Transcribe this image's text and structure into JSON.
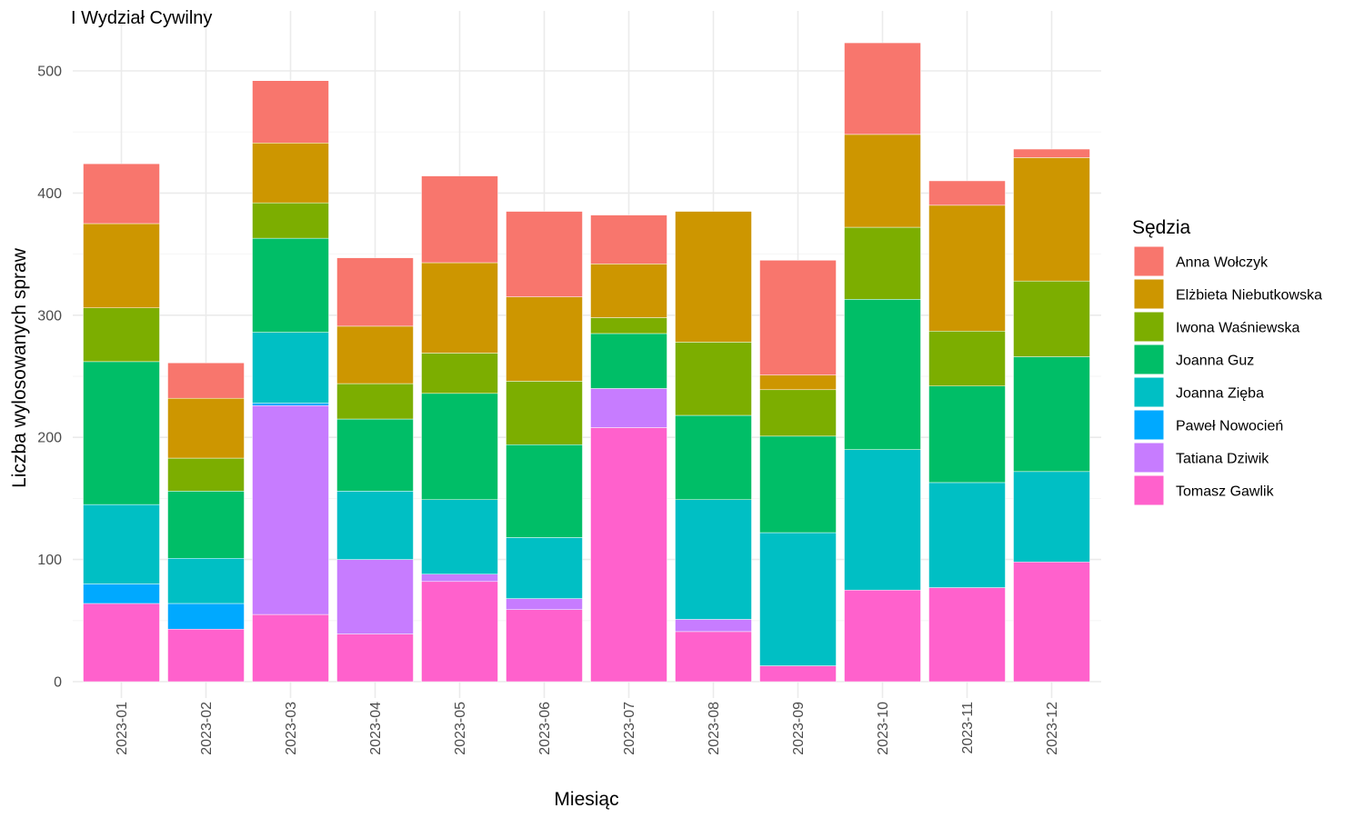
{
  "chart_data": {
    "type": "bar",
    "stacked": true,
    "title": "I Wydział Cywilny",
    "xlabel": "Miesiąc",
    "ylabel": "Liczba wylosowanych spraw",
    "ylim": [
      0,
      530
    ],
    "yticks": [
      0,
      100,
      200,
      300,
      400,
      500
    ],
    "grid": true,
    "legend": {
      "title": "Sędzia",
      "position": "right"
    },
    "categories": [
      "2023-01",
      "2023-02",
      "2023-03",
      "2023-04",
      "2023-05",
      "2023-06",
      "2023-07",
      "2023-08",
      "2023-09",
      "2023-10",
      "2023-11",
      "2023-12"
    ],
    "series": [
      {
        "name": "Anna Wołczyk",
        "color": "#F8766D",
        "values": [
          49,
          29,
          51,
          56,
          71,
          70,
          40,
          0,
          94,
          75,
          20,
          7
        ]
      },
      {
        "name": "Elżbieta Niebutkowska",
        "color": "#CD9600",
        "values": [
          69,
          49,
          49,
          47,
          74,
          69,
          44,
          107,
          12,
          76,
          103,
          101
        ]
      },
      {
        "name": "Iwona Waśniewska",
        "color": "#7CAE00",
        "values": [
          44,
          27,
          29,
          29,
          33,
          52,
          13,
          60,
          38,
          59,
          45,
          62
        ]
      },
      {
        "name": "Joanna Guz",
        "color": "#00BE67",
        "values": [
          117,
          55,
          77,
          59,
          87,
          76,
          45,
          69,
          79,
          123,
          79,
          94
        ]
      },
      {
        "name": "Joanna Zięba",
        "color": "#00BFC4",
        "values": [
          65,
          37,
          58,
          56,
          61,
          50,
          0,
          98,
          109,
          115,
          86,
          74
        ]
      },
      {
        "name": "Paweł Nowocień",
        "color": "#00A9FF",
        "values": [
          16,
          21,
          2,
          0,
          0,
          0,
          0,
          0,
          0,
          0,
          0,
          0
        ]
      },
      {
        "name": "Tatiana Dziwik",
        "color": "#C77CFF",
        "values": [
          0,
          0,
          171,
          61,
          6,
          9,
          32,
          10,
          0,
          0,
          0,
          0
        ]
      },
      {
        "name": "Tomasz Gawlik",
        "color": "#FF61CC",
        "values": [
          64,
          43,
          55,
          39,
          82,
          59,
          208,
          41,
          13,
          75,
          77,
          98
        ]
      }
    ]
  }
}
